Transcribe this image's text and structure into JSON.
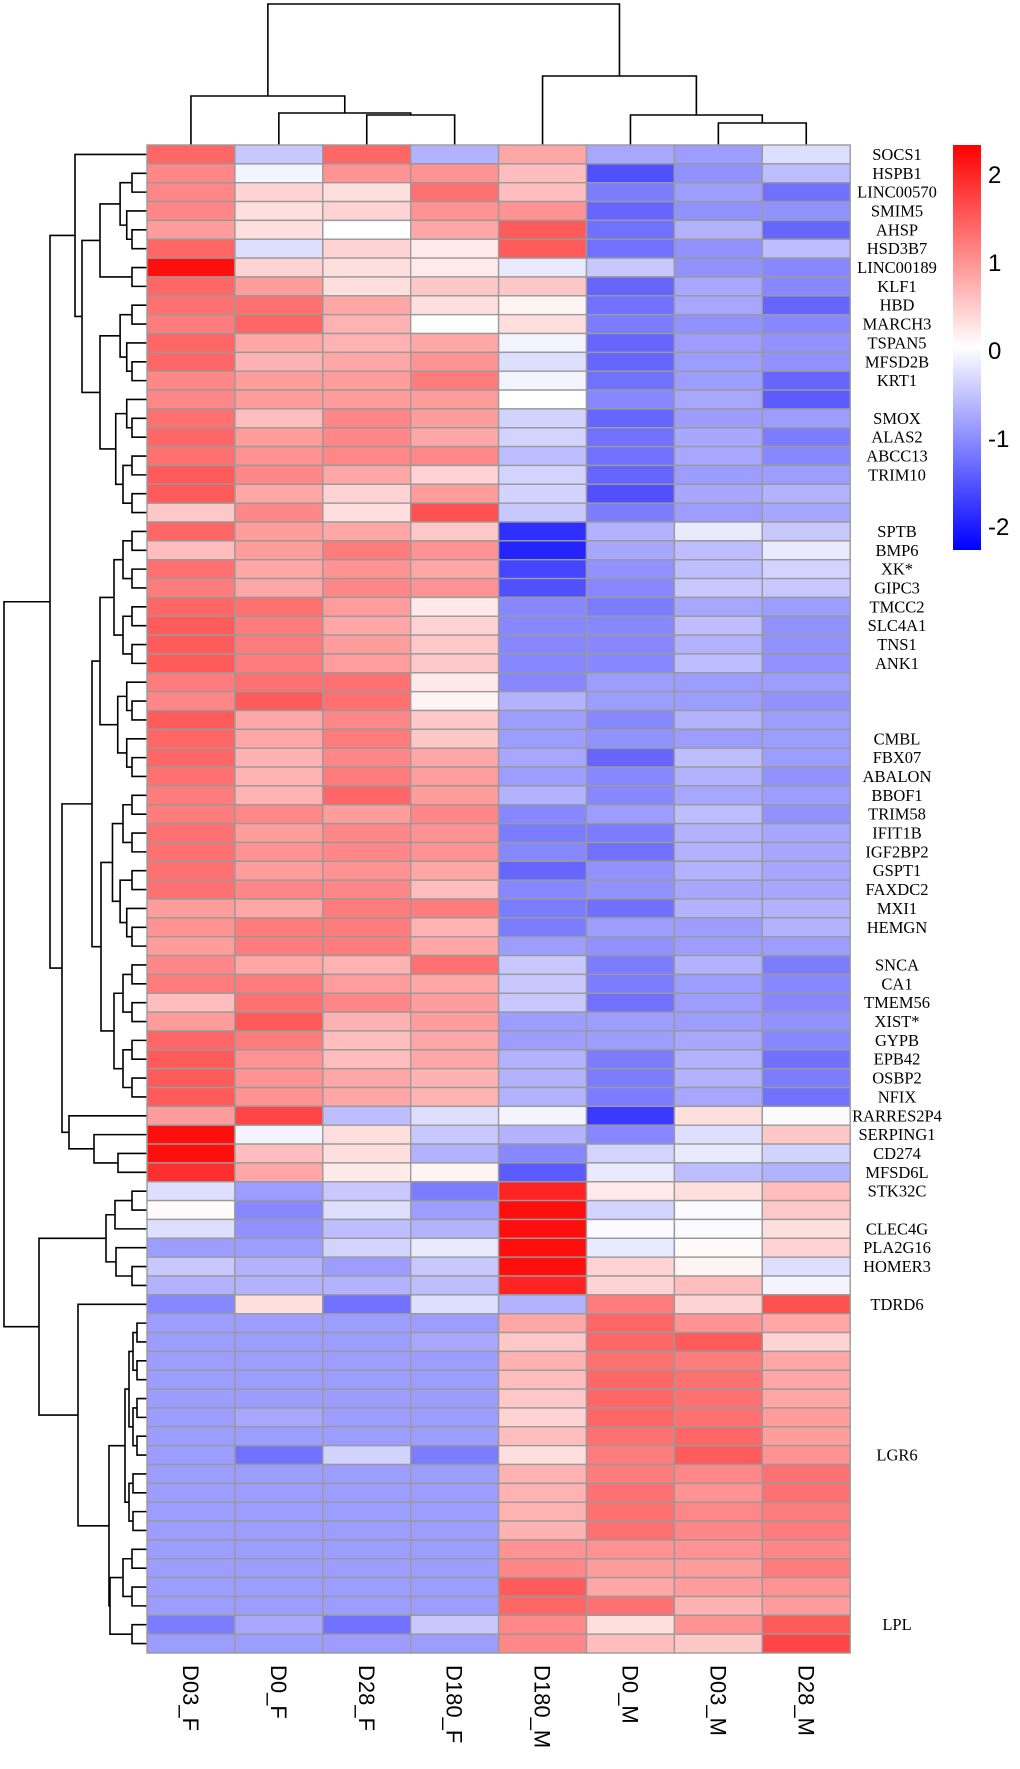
{
  "chart_data": {
    "type": "heatmap",
    "columns": [
      "D03_F",
      "D0_F",
      "D28_F",
      "D180_F",
      "D180_M",
      "D0_M",
      "D03_M",
      "D28_M"
    ],
    "colorbar": {
      "range": [
        -2.33,
        2.33
      ],
      "ticks": [
        2,
        1,
        0,
        -1,
        -2
      ],
      "tick_labels": [
        "2",
        "1",
        "0",
        "-1",
        "-2"
      ],
      "low_color": "#0000FF",
      "mid_color": "#FFFFFF",
      "high_color": "#FF0000"
    },
    "row_dendrogram": true,
    "column_dendrogram": true,
    "rows": [
      {
        "label": "SOCS1",
        "values": [
          1.4,
          -0.5,
          1.4,
          -0.7,
          0.8,
          -0.8,
          -0.9,
          -0.3
        ]
      },
      {
        "label": "HSPB1",
        "values": [
          1.1,
          -0.1,
          1.0,
          1.0,
          0.6,
          -1.6,
          -1.0,
          -0.6
        ]
      },
      {
        "label": "LINC00570",
        "values": [
          1.1,
          0.4,
          0.3,
          1.3,
          0.6,
          -1.2,
          -0.9,
          -1.3
        ]
      },
      {
        "label": "SMIM5",
        "values": [
          1.1,
          0.3,
          0.4,
          1.0,
          1.0,
          -1.4,
          -1.0,
          -1.0
        ]
      },
      {
        "label": "AHSP",
        "values": [
          0.9,
          0.3,
          0.0,
          0.8,
          1.5,
          -1.3,
          -0.7,
          -1.4
        ]
      },
      {
        "label": "HSD3B7",
        "values": [
          1.4,
          -0.3,
          0.4,
          0.2,
          1.5,
          -1.3,
          -1.0,
          -0.6
        ]
      },
      {
        "label": "LINC00189",
        "values": [
          2.2,
          0.4,
          0.3,
          0.2,
          -0.2,
          -0.5,
          -1.0,
          -1.1
        ]
      },
      {
        "label": "KLF1",
        "values": [
          1.4,
          0.9,
          0.3,
          0.5,
          0.5,
          -1.4,
          -0.8,
          -1.1
        ]
      },
      {
        "label": "HBD",
        "values": [
          1.3,
          1.3,
          0.8,
          0.3,
          0.1,
          -1.3,
          -0.8,
          -1.4
        ]
      },
      {
        "label": "MARCH3",
        "values": [
          1.2,
          1.4,
          0.7,
          0.0,
          0.3,
          -1.2,
          -1.0,
          -1.1
        ]
      },
      {
        "label": "TSPAN5",
        "values": [
          1.4,
          0.8,
          0.7,
          0.8,
          -0.1,
          -1.4,
          -0.9,
          -1.0
        ]
      },
      {
        "label": "MFSD2B",
        "values": [
          1.4,
          0.7,
          0.8,
          1.0,
          -0.3,
          -1.4,
          -0.9,
          -1.0
        ]
      },
      {
        "label": "KRT1",
        "values": [
          1.1,
          0.9,
          0.9,
          1.2,
          -0.1,
          -1.3,
          -0.9,
          -1.4
        ]
      },
      {
        "label": "",
        "values": [
          1.1,
          0.9,
          0.9,
          0.9,
          0.0,
          -1.1,
          -0.8,
          -1.5
        ]
      },
      {
        "label": "SMOX",
        "values": [
          1.3,
          0.6,
          1.1,
          0.9,
          -0.4,
          -1.4,
          -0.9,
          -0.9
        ]
      },
      {
        "label": "ALAS2",
        "values": [
          1.4,
          0.9,
          1.1,
          0.8,
          -0.4,
          -1.3,
          -0.8,
          -1.2
        ]
      },
      {
        "label": "ABCC13",
        "values": [
          1.3,
          1.0,
          1.1,
          1.1,
          -0.6,
          -1.3,
          -0.8,
          -1.1
        ]
      },
      {
        "label": "TRIM10",
        "values": [
          1.5,
          1.1,
          0.8,
          0.4,
          -0.4,
          -1.4,
          -0.9,
          -0.9
        ]
      },
      {
        "label": "",
        "values": [
          1.5,
          0.8,
          0.4,
          0.9,
          -0.4,
          -1.6,
          -0.8,
          -0.7
        ]
      },
      {
        "label": "",
        "values": [
          0.5,
          1.1,
          0.3,
          1.6,
          -0.5,
          -1.2,
          -0.9,
          -0.8
        ]
      },
      {
        "label": "SPTB",
        "values": [
          1.4,
          0.9,
          0.8,
          0.5,
          -1.9,
          -0.7,
          -0.2,
          -0.5
        ]
      },
      {
        "label": "BMP6",
        "values": [
          0.6,
          0.9,
          1.2,
          1.0,
          -2.0,
          -0.8,
          -0.6,
          -0.2
        ]
      },
      {
        "label": "XK*",
        "values": [
          1.3,
          0.8,
          1.0,
          0.8,
          -1.7,
          -1.0,
          -0.6,
          -0.4
        ]
      },
      {
        "label": "GIPC3",
        "values": [
          1.2,
          0.8,
          1.1,
          1.0,
          -1.6,
          -1.1,
          -0.5,
          -0.5
        ]
      },
      {
        "label": "TMCC2",
        "values": [
          1.4,
          1.3,
          0.9,
          0.2,
          -1.1,
          -1.2,
          -0.8,
          -0.9
        ]
      },
      {
        "label": "SLC4A1",
        "values": [
          1.5,
          1.2,
          0.8,
          0.4,
          -1.1,
          -1.1,
          -0.6,
          -1.0
        ]
      },
      {
        "label": "TNS1",
        "values": [
          1.5,
          1.2,
          0.9,
          0.5,
          -1.1,
          -1.1,
          -0.7,
          -1.0
        ]
      },
      {
        "label": "ANK1",
        "values": [
          1.5,
          1.2,
          0.9,
          0.5,
          -1.1,
          -1.1,
          -0.6,
          -1.0
        ]
      },
      {
        "label": "",
        "values": [
          1.2,
          1.3,
          1.3,
          0.2,
          -1.1,
          -0.9,
          -0.9,
          -0.9
        ]
      },
      {
        "label": "",
        "values": [
          1.1,
          1.5,
          1.3,
          0.1,
          -0.7,
          -0.9,
          -0.9,
          -1.0
        ]
      },
      {
        "label": "",
        "values": [
          1.5,
          0.8,
          1.1,
          0.5,
          -0.9,
          -1.1,
          -0.7,
          -0.9
        ]
      },
      {
        "label": "CMBL",
        "values": [
          1.4,
          0.8,
          1.2,
          0.5,
          -0.9,
          -1.0,
          -0.9,
          -0.9
        ]
      },
      {
        "label": "FBX07",
        "values": [
          1.4,
          0.7,
          1.1,
          0.8,
          -0.8,
          -1.4,
          -0.6,
          -0.9
        ]
      },
      {
        "label": "ABALON",
        "values": [
          1.3,
          0.7,
          1.2,
          0.9,
          -0.9,
          -1.1,
          -0.7,
          -1.0
        ]
      },
      {
        "label": "BBOF1",
        "values": [
          1.2,
          0.7,
          1.4,
          0.9,
          -0.7,
          -1.1,
          -0.8,
          -0.9
        ]
      },
      {
        "label": "TRIM58",
        "values": [
          1.2,
          1.1,
          0.9,
          1.1,
          -1.1,
          -0.9,
          -0.6,
          -1.0
        ]
      },
      {
        "label": "IFIT1B",
        "values": [
          1.3,
          0.9,
          1.1,
          1.0,
          -1.2,
          -1.2,
          -0.7,
          -0.8
        ]
      },
      {
        "label": "IGF2BP2",
        "values": [
          1.3,
          1.0,
          1.1,
          1.0,
          -1.1,
          -1.3,
          -0.7,
          -0.8
        ]
      },
      {
        "label": "GSPT1",
        "values": [
          1.3,
          0.9,
          1.0,
          0.8,
          -1.4,
          -1.0,
          -0.7,
          -0.8
        ]
      },
      {
        "label": "FAXDC2",
        "values": [
          1.3,
          1.1,
          1.1,
          0.6,
          -1.1,
          -1.0,
          -0.8,
          -0.8
        ]
      },
      {
        "label": "MXI1",
        "values": [
          0.9,
          0.8,
          1.2,
          1.2,
          -1.2,
          -1.3,
          -0.7,
          -0.7
        ]
      },
      {
        "label": "HEMGN",
        "values": [
          1.0,
          1.2,
          1.2,
          0.7,
          -1.2,
          -0.9,
          -0.9,
          -0.7
        ]
      },
      {
        "label": "",
        "values": [
          0.9,
          1.2,
          1.2,
          0.8,
          -0.9,
          -1.0,
          -0.9,
          -0.9
        ]
      },
      {
        "label": "SNCA",
        "values": [
          1.1,
          0.8,
          0.7,
          1.3,
          -0.5,
          -1.2,
          -0.7,
          -1.2
        ]
      },
      {
        "label": "CA1",
        "values": [
          1.2,
          1.2,
          0.9,
          0.8,
          -0.5,
          -1.2,
          -0.9,
          -1.1
        ]
      },
      {
        "label": "TMEM56",
        "values": [
          0.6,
          1.3,
          1.1,
          0.9,
          -0.5,
          -1.3,
          -0.9,
          -1.1
        ]
      },
      {
        "label": "XIST*",
        "values": [
          0.9,
          1.5,
          0.7,
          0.9,
          -0.9,
          -0.9,
          -0.9,
          -1.0
        ]
      },
      {
        "label": "GYPB",
        "values": [
          1.4,
          1.2,
          0.6,
          0.8,
          -0.9,
          -0.9,
          -0.8,
          -1.1
        ]
      },
      {
        "label": "EPB42",
        "values": [
          1.5,
          1.0,
          0.6,
          0.8,
          -0.7,
          -1.2,
          -0.7,
          -1.3
        ]
      },
      {
        "label": "OSBP2",
        "values": [
          1.5,
          1.0,
          0.8,
          0.7,
          -0.7,
          -1.2,
          -0.7,
          -1.2
        ]
      },
      {
        "label": "NFIX",
        "values": [
          1.5,
          1.0,
          0.8,
          0.7,
          -0.7,
          -1.2,
          -0.8,
          -1.3
        ]
      },
      {
        "label": "RARRES2P4",
        "values": [
          0.9,
          1.7,
          -0.6,
          -0.3,
          -0.1,
          -1.8,
          0.3,
          -0.05
        ]
      },
      {
        "label": "SERPING1",
        "values": [
          2.2,
          -0.1,
          0.3,
          -0.5,
          -0.7,
          -1.1,
          -0.3,
          0.5
        ]
      },
      {
        "label": "CD274",
        "values": [
          2.2,
          0.6,
          0.3,
          -0.7,
          -1.1,
          -0.4,
          -0.2,
          -0.4
        ]
      },
      {
        "label": "MFSD6L",
        "values": [
          1.9,
          0.8,
          0.2,
          0.1,
          -1.5,
          -0.2,
          -0.6,
          -0.7
        ]
      },
      {
        "label": "STK32C",
        "values": [
          -0.3,
          -0.9,
          -0.5,
          -1.2,
          2.0,
          0.2,
          0.3,
          0.6
        ]
      },
      {
        "label": "",
        "values": [
          0.05,
          -1.1,
          -0.3,
          -0.9,
          2.2,
          -0.4,
          -0.05,
          0.5
        ]
      },
      {
        "label": "CLEC4G",
        "values": [
          -0.3,
          -1.0,
          -0.6,
          -0.7,
          2.2,
          -0.05,
          -0.05,
          0.3
        ]
      },
      {
        "label": "PLA2G16",
        "values": [
          -0.9,
          -0.9,
          -0.4,
          -0.2,
          2.2,
          -0.2,
          0.05,
          0.4
        ]
      },
      {
        "label": "HOMER3",
        "values": [
          -0.5,
          -0.7,
          -0.9,
          -0.5,
          2.2,
          0.4,
          0.1,
          -0.3
        ]
      },
      {
        "label": "",
        "values": [
          -0.7,
          -0.7,
          -0.7,
          -0.6,
          2.0,
          0.4,
          0.6,
          -0.1
        ]
      },
      {
        "label": "TDRD6",
        "values": [
          -1.1,
          0.3,
          -1.3,
          -0.3,
          -0.7,
          1.2,
          0.4,
          1.6
        ]
      },
      {
        "label": "",
        "values": [
          -0.9,
          -0.9,
          -0.9,
          -0.9,
          0.8,
          1.4,
          1.0,
          0.8
        ]
      },
      {
        "label": "",
        "values": [
          -0.9,
          -0.9,
          -0.9,
          -0.8,
          0.5,
          1.4,
          1.5,
          0.4
        ]
      },
      {
        "label": "",
        "values": [
          -0.9,
          -0.9,
          -0.9,
          -0.9,
          0.7,
          1.3,
          1.2,
          0.8
        ]
      },
      {
        "label": "",
        "values": [
          -0.9,
          -0.9,
          -0.9,
          -0.9,
          0.6,
          1.4,
          1.3,
          0.8
        ]
      },
      {
        "label": "",
        "values": [
          -0.9,
          -0.9,
          -0.9,
          -0.9,
          0.5,
          1.4,
          1.3,
          0.8
        ]
      },
      {
        "label": "",
        "values": [
          -0.9,
          -0.8,
          -0.9,
          -0.9,
          0.4,
          1.4,
          1.3,
          0.9
        ]
      },
      {
        "label": "",
        "values": [
          -0.9,
          -0.9,
          -0.9,
          -0.9,
          0.6,
          1.3,
          1.4,
          0.9
        ]
      },
      {
        "label": "LGR6",
        "values": [
          -0.9,
          -1.3,
          -0.4,
          -1.2,
          0.3,
          1.2,
          1.5,
          1.0
        ]
      },
      {
        "label": "",
        "values": [
          -0.9,
          -0.9,
          -0.9,
          -0.9,
          0.7,
          1.2,
          1.1,
          1.3
        ]
      },
      {
        "label": "",
        "values": [
          -0.9,
          -0.9,
          -0.9,
          -0.9,
          0.7,
          1.3,
          1.0,
          1.3
        ]
      },
      {
        "label": "",
        "values": [
          -0.9,
          -0.9,
          -0.9,
          -0.9,
          0.7,
          1.3,
          1.1,
          1.2
        ]
      },
      {
        "label": "",
        "values": [
          -0.9,
          -0.9,
          -0.9,
          -0.9,
          0.7,
          1.3,
          1.1,
          1.2
        ]
      },
      {
        "label": "",
        "values": [
          -0.9,
          -0.9,
          -0.9,
          -0.9,
          1.0,
          1.0,
          1.0,
          1.1
        ]
      },
      {
        "label": "",
        "values": [
          -0.9,
          -0.9,
          -0.9,
          -0.9,
          1.1,
          0.9,
          0.9,
          1.2
        ]
      },
      {
        "label": "",
        "values": [
          -0.9,
          -0.9,
          -0.9,
          -0.9,
          1.5,
          0.8,
          0.9,
          1.0
        ]
      },
      {
        "label": "",
        "values": [
          -0.9,
          -0.9,
          -0.9,
          -0.9,
          1.4,
          1.3,
          0.7,
          0.9
        ]
      },
      {
        "label": "LPL",
        "values": [
          -1.2,
          -0.8,
          -1.3,
          -0.5,
          1.1,
          0.3,
          1.0,
          1.5
        ]
      },
      {
        "label": "",
        "values": [
          -0.9,
          -0.9,
          -0.9,
          -0.9,
          1.1,
          0.6,
          0.5,
          1.7
        ]
      }
    ]
  }
}
